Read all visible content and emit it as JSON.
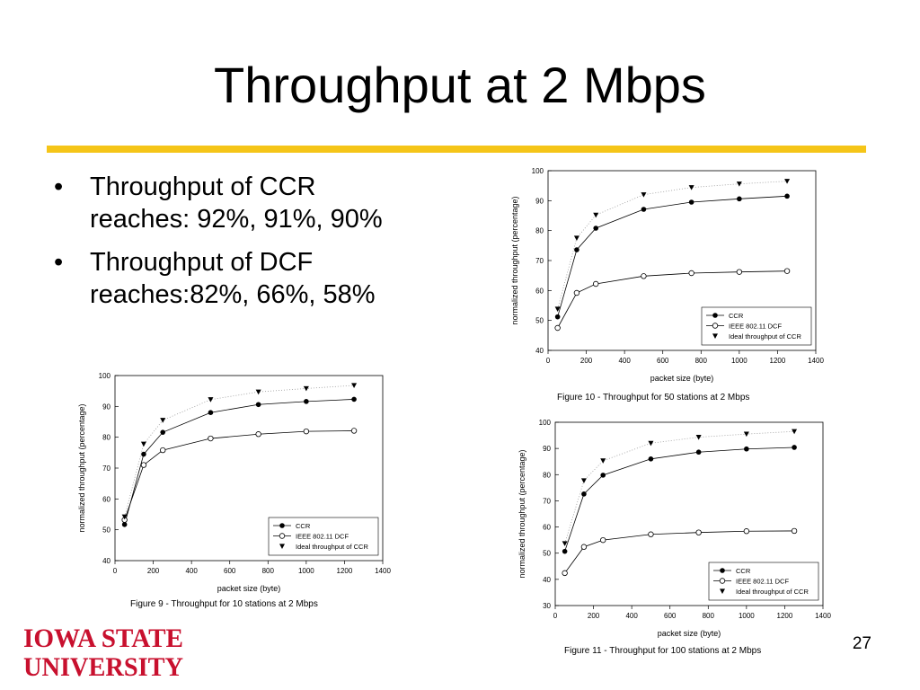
{
  "slide": {
    "title": "Throughput at 2 Mbps",
    "bullets": [
      {
        "marker": "•",
        "line1": "Throughput of CCR",
        "line2": "reaches: 92%, 91%, 90%"
      },
      {
        "marker": "•",
        "line1": "Throughput of DCF",
        "line2": "reaches:82%, 66%, 58%"
      }
    ],
    "page_number": "27",
    "logo": {
      "line1": "IOWA STATE",
      "line2": "UNIVERSITY"
    },
    "colors": {
      "rule": "#f5c518",
      "logo": "#c8102e"
    }
  },
  "chart_data": [
    {
      "type": "line",
      "caption": "Figure 9 - Throughput for 10 stations at 2 Mbps",
      "xlabel": "packet size (byte)",
      "ylabel": "normalized throughput (percentage)",
      "xlim": [
        0,
        1400
      ],
      "ylim": [
        40,
        100
      ],
      "xticks": [
        0,
        200,
        400,
        600,
        800,
        1000,
        1200,
        1400
      ],
      "yticks": [
        40,
        50,
        60,
        70,
        80,
        90,
        100
      ],
      "legend_position": "bottom-right",
      "series": [
        {
          "name": "CCR",
          "marker": "filled-circle",
          "line": "solid",
          "x": [
            50,
            150,
            250,
            500,
            750,
            1000,
            1250
          ],
          "y": [
            51.7,
            74.5,
            81.6,
            88,
            90.6,
            91.6,
            92.3
          ]
        },
        {
          "name": "IEEE 802.11 DCF",
          "marker": "open-circle",
          "line": "solid",
          "x": [
            50,
            150,
            250,
            500,
            750,
            1000,
            1250
          ],
          "y": [
            53.2,
            71,
            75.8,
            79.6,
            81,
            81.9,
            82.1
          ]
        },
        {
          "name": "Ideal throughput of CCR",
          "marker": "triangle-down",
          "line": "dotted",
          "x": [
            50,
            150,
            250,
            500,
            750,
            1000,
            1250
          ],
          "y": [
            54.2,
            77.8,
            85.5,
            92.2,
            94.7,
            95.8,
            96.8
          ]
        }
      ]
    },
    {
      "type": "line",
      "caption": "Figure 10 - Throughput for 50 stations at 2 Mbps",
      "xlabel": "packet size (byte)",
      "ylabel": "normalized throughput (percentage)",
      "xlim": [
        0,
        1400
      ],
      "ylim": [
        40,
        100
      ],
      "xticks": [
        0,
        200,
        400,
        600,
        800,
        1000,
        1200,
        1400
      ],
      "yticks": [
        40,
        50,
        60,
        70,
        80,
        90,
        100
      ],
      "legend_position": "bottom-right",
      "series": [
        {
          "name": "CCR",
          "marker": "filled-circle",
          "line": "solid",
          "x": [
            50,
            150,
            250,
            500,
            750,
            1000,
            1250
          ],
          "y": [
            51.2,
            73.6,
            80.8,
            87.1,
            89.5,
            90.6,
            91.5
          ]
        },
        {
          "name": "IEEE 802.11 DCF",
          "marker": "open-circle",
          "line": "solid",
          "x": [
            50,
            150,
            250,
            500,
            750,
            1000,
            1250
          ],
          "y": [
            47.5,
            59.2,
            62.2,
            64.8,
            65.8,
            66.2,
            66.5
          ]
        },
        {
          "name": "Ideal throughput of CCR",
          "marker": "triangle-down",
          "line": "dotted",
          "x": [
            50,
            150,
            250,
            500,
            750,
            1000,
            1250
          ],
          "y": [
            53.8,
            77.5,
            85.2,
            92,
            94.4,
            95.6,
            96.5
          ]
        }
      ]
    },
    {
      "type": "line",
      "caption": "Figure 11 - Throughput for 100 stations at 2 Mbps",
      "xlabel": "packet size (byte)",
      "ylabel": "normalized throughput (percentage)",
      "xlim": [
        0,
        1400
      ],
      "ylim": [
        30,
        100
      ],
      "xticks": [
        0,
        200,
        400,
        600,
        800,
        1000,
        1200,
        1400
      ],
      "yticks": [
        30,
        40,
        50,
        60,
        70,
        80,
        90,
        100
      ],
      "legend_position": "bottom-right",
      "series": [
        {
          "name": "CCR",
          "marker": "filled-circle",
          "line": "solid",
          "x": [
            50,
            150,
            250,
            500,
            750,
            1000,
            1250
          ],
          "y": [
            50.7,
            72.6,
            79.8,
            86,
            88.6,
            89.8,
            90.4
          ]
        },
        {
          "name": "IEEE 802.11 DCF",
          "marker": "open-circle",
          "line": "solid",
          "x": [
            50,
            150,
            250,
            500,
            750,
            1000,
            1250
          ],
          "y": [
            42.4,
            52.4,
            55,
            57.2,
            57.9,
            58.4,
            58.5
          ]
        },
        {
          "name": "Ideal throughput of CCR",
          "marker": "triangle-down",
          "line": "dotted",
          "x": [
            50,
            150,
            250,
            500,
            750,
            1000,
            1250
          ],
          "y": [
            53.7,
            77.7,
            85.3,
            92,
            94.3,
            95.5,
            96.5
          ]
        }
      ]
    }
  ]
}
